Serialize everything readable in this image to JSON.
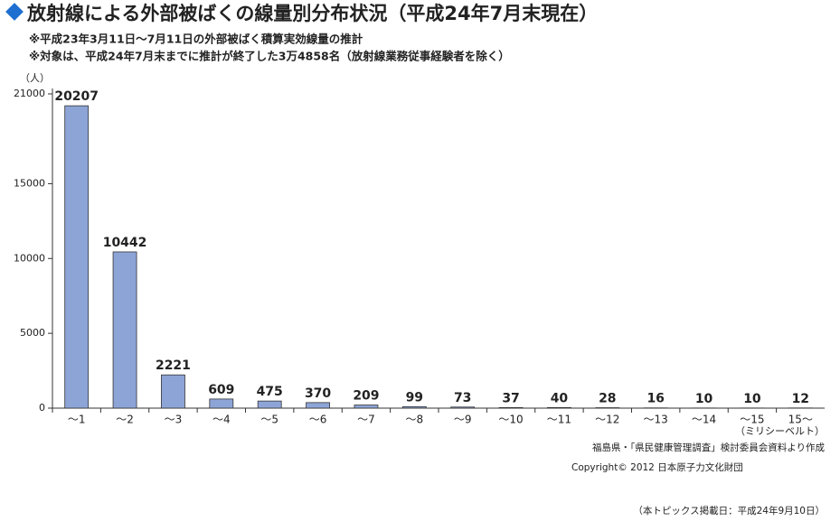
{
  "chart_data": {
    "type": "bar",
    "title": "放射線による外部被ばくの線量別分布状況（平成24年7月末現在）",
    "subtitle": [
      "※平成23年3月11日〜7月11日の外部被ばく積算実効線量の推計",
      "※対象は、平成24年7月末までに推計が終了した3万4858名（放射線業務従事経験者を除く）"
    ],
    "y_label": "（人）",
    "x_label": "（ミリシーベルト）",
    "categories": [
      "〜1",
      "〜2",
      "〜3",
      "〜4",
      "〜5",
      "〜6",
      "〜7",
      "〜8",
      "〜9",
      "〜10",
      "〜11",
      "〜12",
      "〜13",
      "〜14",
      "〜15",
      "15〜"
    ],
    "values": [
      20207,
      10442,
      2221,
      609,
      475,
      370,
      209,
      99,
      73,
      37,
      40,
      28,
      16,
      10,
      10,
      12
    ],
    "color": "#8da4d6",
    "ylim": [
      0,
      21000
    ],
    "yticks": [
      0,
      5000,
      10000,
      15000,
      21000
    ],
    "source": "福島県・「県民健康管理調査」検討委員会資料より作成",
    "copyright": "Copyright© 2012 日本原子力文化財団",
    "footnote": "（本トピックス掲載日：平成24年9月10日）"
  }
}
